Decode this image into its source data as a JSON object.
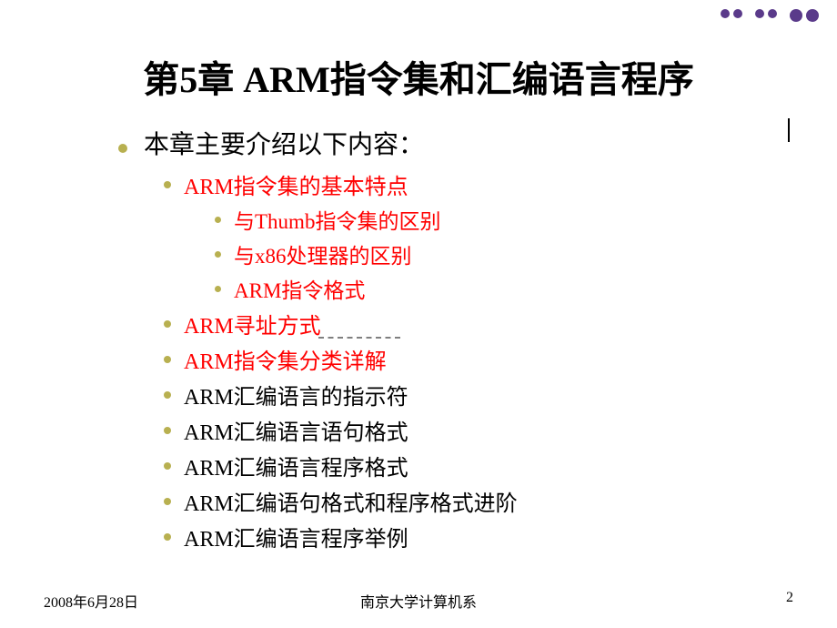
{
  "colors": {
    "bullet": "#b8b050",
    "highlight": "#ff0000",
    "body_text": "#000000",
    "deco_dot": "#5a3a8a",
    "dash": "#7f7f7f",
    "background": "#ffffff"
  },
  "typography": {
    "title_fontsize": 40,
    "l1_fontsize": 28,
    "l2_fontsize": 24,
    "l3_fontsize": 23,
    "footer_fontsize": 16,
    "font_family": "SimSun, Times New Roman, serif"
  },
  "title": "第5章 ARM指令集和汇编语言程序",
  "intro": "本章主要介绍以下内容：",
  "items": [
    {
      "level": 2,
      "text": "ARM指令集的基本特点",
      "highlight": true
    },
    {
      "level": 3,
      "text": "与Thumb指令集的区别",
      "highlight": true
    },
    {
      "level": 3,
      "text": "与x86处理器的区别",
      "highlight": true
    },
    {
      "level": 3,
      "text": "ARM指令格式",
      "highlight": true
    },
    {
      "level": 2,
      "text": "ARM寻址方式",
      "highlight": true
    },
    {
      "level": 2,
      "text": "ARM指令集分类详解",
      "highlight": true
    },
    {
      "level": 2,
      "text": "ARM汇编语言的指示符",
      "highlight": false
    },
    {
      "level": 2,
      "text": "ARM汇编语言语句格式",
      "highlight": false
    },
    {
      "level": 2,
      "text": "ARM汇编语言程序格式",
      "highlight": false
    },
    {
      "level": 2,
      "text": "ARM汇编语句格式和程序格式进阶",
      "highlight": false
    },
    {
      "level": 2,
      "text": "ARM汇编语言程序举例",
      "highlight": false
    }
  ],
  "footer": {
    "date": "2008年6月28日",
    "org": "南京大学计算机系",
    "page": "2"
  }
}
